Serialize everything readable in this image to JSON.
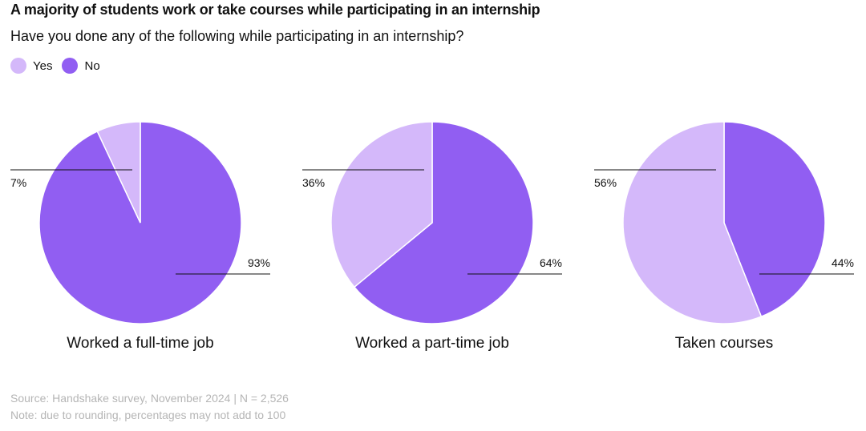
{
  "chart_data": {
    "type": "pie",
    "title": "A majority of students work or take courses while participating in an internship",
    "subtitle": "Have you done any of the following while participating in an internship?",
    "legend": [
      {
        "label": "Yes",
        "color": "#d4b8fa"
      },
      {
        "label": "No",
        "color": "#915ef2"
      }
    ],
    "legend_position": "top-left",
    "charts": [
      {
        "label": "Worked a full-time job",
        "slices": [
          {
            "name": "Yes",
            "value": 7,
            "label": "7%"
          },
          {
            "name": "No",
            "value": 93,
            "label": "93%"
          }
        ]
      },
      {
        "label": "Worked a part-time job",
        "slices": [
          {
            "name": "Yes",
            "value": 36,
            "label": "36%"
          },
          {
            "name": "No",
            "value": 64,
            "label": "64%"
          }
        ]
      },
      {
        "label": "Taken courses",
        "slices": [
          {
            "name": "Yes",
            "value": 56,
            "label": "56%"
          },
          {
            "name": "No",
            "value": 44,
            "label": "44%"
          }
        ]
      }
    ]
  },
  "footer": {
    "source": "Source: Handshake survey, November 2024 | N = 2,526",
    "note": "Note: due to rounding, percentages may not add to 100"
  }
}
